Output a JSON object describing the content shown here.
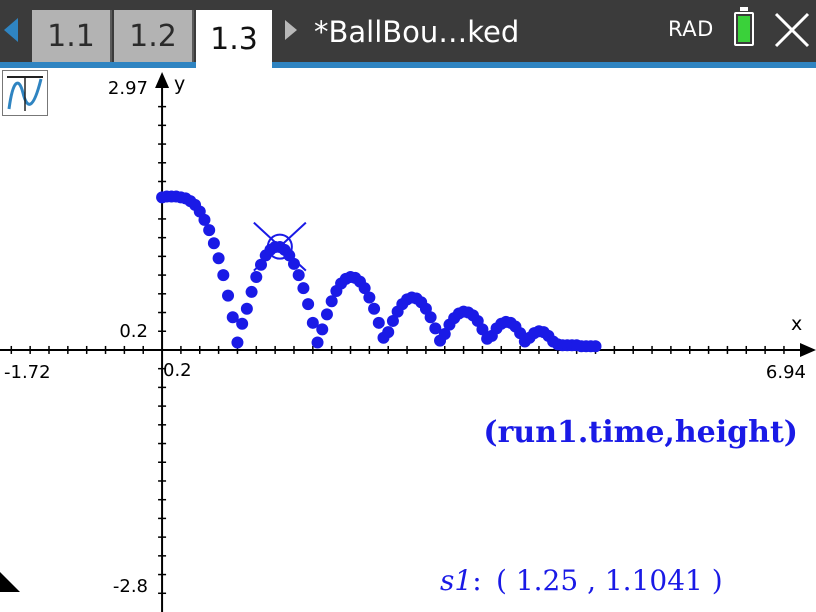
{
  "tabs": [
    {
      "label": "1.1",
      "active": false
    },
    {
      "label": "1.2",
      "active": false
    },
    {
      "label": "1.3",
      "active": true
    }
  ],
  "document": {
    "title": "*BallBou…ked"
  },
  "status": {
    "angle_mode": "RAD",
    "battery_level": 1.0
  },
  "colors": {
    "topbar": "#3b3b3b",
    "accent": "#2f84c1",
    "plot": "#1a1ae6",
    "battery": "#3ad13a"
  },
  "icons": {
    "graph_type": "graph-function-icon",
    "close": "close-icon",
    "nav_left": "arrow-left-icon",
    "nav_right": "arrow-right-icon"
  },
  "graph": {
    "window": {
      "xmin": -1.72,
      "xmax": 6.94,
      "ymin": -2.8,
      "ymax": 2.97
    },
    "labels": {
      "xmin": "-1.72",
      "xmax": "6.94",
      "ymin": "-2.8",
      "ymax": "2.97",
      "xscl": "0.2",
      "yscl": "0.2",
      "x_axis": "x",
      "y_axis": "y"
    },
    "plot_label": "(run1.time,height)",
    "trace": {
      "name": "s1",
      "point": "( 1.25 , 1.1041 )",
      "x": 1.25,
      "y": 1.1041
    }
  },
  "chart_data": {
    "type": "scatter",
    "title": "",
    "xlabel": "x",
    "ylabel": "y",
    "xlim": [
      -1.72,
      6.94
    ],
    "ylim": [
      -2.8,
      2.97
    ],
    "series": [
      {
        "name": "(run1.time,height)",
        "points": [
          [
            0.0,
            1.63
          ],
          [
            0.05,
            1.64
          ],
          [
            0.1,
            1.64
          ],
          [
            0.15,
            1.64
          ],
          [
            0.2,
            1.63
          ],
          [
            0.25,
            1.62
          ],
          [
            0.3,
            1.59
          ],
          [
            0.35,
            1.55
          ],
          [
            0.4,
            1.48
          ],
          [
            0.45,
            1.39
          ],
          [
            0.5,
            1.28
          ],
          [
            0.55,
            1.14
          ],
          [
            0.6,
            0.98
          ],
          [
            0.65,
            0.8
          ],
          [
            0.7,
            0.58
          ],
          [
            0.75,
            0.35
          ],
          [
            0.8,
            0.08
          ],
          [
            0.85,
            0.28
          ],
          [
            0.9,
            0.44
          ],
          [
            0.95,
            0.62
          ],
          [
            1.0,
            0.78
          ],
          [
            1.05,
            0.91
          ],
          [
            1.1,
            1.01
          ],
          [
            1.15,
            1.07
          ],
          [
            1.2,
            1.1
          ],
          [
            1.25,
            1.1
          ],
          [
            1.3,
            1.07
          ],
          [
            1.35,
            1.01
          ],
          [
            1.4,
            0.92
          ],
          [
            1.45,
            0.8
          ],
          [
            1.5,
            0.66
          ],
          [
            1.55,
            0.49
          ],
          [
            1.6,
            0.29
          ],
          [
            1.65,
            0.08
          ],
          [
            1.7,
            0.22
          ],
          [
            1.75,
            0.38
          ],
          [
            1.8,
            0.52
          ],
          [
            1.85,
            0.63
          ],
          [
            1.9,
            0.71
          ],
          [
            1.95,
            0.76
          ],
          [
            2.0,
            0.78
          ],
          [
            2.05,
            0.77
          ],
          [
            2.1,
            0.73
          ],
          [
            2.15,
            0.66
          ],
          [
            2.2,
            0.56
          ],
          [
            2.25,
            0.44
          ],
          [
            2.3,
            0.29
          ],
          [
            2.35,
            0.13
          ],
          [
            2.4,
            0.19
          ],
          [
            2.45,
            0.31
          ],
          [
            2.5,
            0.41
          ],
          [
            2.55,
            0.49
          ],
          [
            2.6,
            0.54
          ],
          [
            2.65,
            0.56
          ],
          [
            2.7,
            0.55
          ],
          [
            2.75,
            0.51
          ],
          [
            2.8,
            0.44
          ],
          [
            2.85,
            0.35
          ],
          [
            2.9,
            0.23
          ],
          [
            2.95,
            0.1
          ],
          [
            3.0,
            0.17
          ],
          [
            3.05,
            0.27
          ],
          [
            3.1,
            0.34
          ],
          [
            3.15,
            0.39
          ],
          [
            3.2,
            0.41
          ],
          [
            3.25,
            0.4
          ],
          [
            3.3,
            0.37
          ],
          [
            3.35,
            0.31
          ],
          [
            3.4,
            0.22
          ],
          [
            3.45,
            0.12
          ],
          [
            3.5,
            0.15
          ],
          [
            3.55,
            0.23
          ],
          [
            3.6,
            0.28
          ],
          [
            3.65,
            0.3
          ],
          [
            3.7,
            0.29
          ],
          [
            3.75,
            0.25
          ],
          [
            3.8,
            0.18
          ],
          [
            3.85,
            0.09
          ],
          [
            3.9,
            0.13
          ],
          [
            3.95,
            0.18
          ],
          [
            4.0,
            0.2
          ],
          [
            4.05,
            0.19
          ],
          [
            4.1,
            0.15
          ],
          [
            4.15,
            0.09
          ],
          [
            4.2,
            0.06
          ],
          [
            4.25,
            0.05
          ],
          [
            4.3,
            0.05
          ],
          [
            4.35,
            0.05
          ],
          [
            4.4,
            0.05
          ],
          [
            4.45,
            0.04
          ],
          [
            4.5,
            0.04
          ],
          [
            4.55,
            0.04
          ],
          [
            4.6,
            0.04
          ]
        ]
      }
    ]
  }
}
